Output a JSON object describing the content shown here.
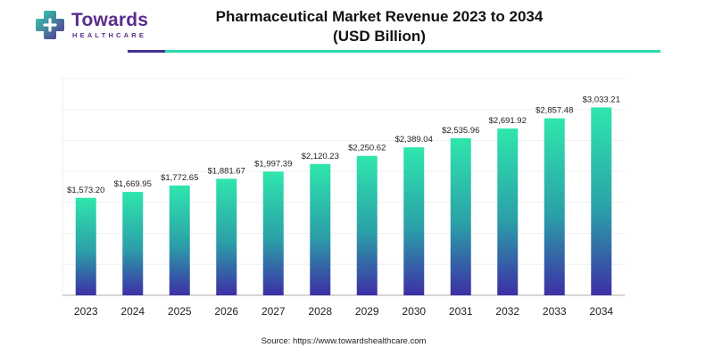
{
  "brand": {
    "name": "Towards",
    "tagline": "HEALTHCARE",
    "mark_icon": "medical-cross-icon",
    "colors": {
      "purple": "#5b2d8e",
      "teal": "#2fd8b0",
      "indigo": "#3d3294"
    }
  },
  "chart_data": {
    "type": "bar",
    "title": "Pharmaceutical Market Revenue 2023 to 2034",
    "subtitle": "(USD Billion)",
    "categories": [
      "2023",
      "2024",
      "2025",
      "2026",
      "2027",
      "2028",
      "2029",
      "2030",
      "2031",
      "2032",
      "2033",
      "2034"
    ],
    "values": [
      1573.2,
      1669.95,
      1772.65,
      1881.67,
      1997.39,
      2120.23,
      2250.62,
      2389.04,
      2535.96,
      2691.92,
      2857.48,
      3033.21
    ],
    "data_labels": [
      "$1,573.20",
      "$1,669.95",
      "$1,772.65",
      "$1,881.67",
      "$1,997.39",
      "$2,120.23",
      "$2,250.62",
      "$2,389.04",
      "$2,535.96",
      "$2,691.92",
      "$2,857.48",
      "$3,033.21"
    ],
    "xlabel": "",
    "ylabel": "",
    "ylim": [
      0,
      3500
    ],
    "grid": true,
    "legend": "none",
    "bar_gradient": {
      "top": "#2fe6ad",
      "middle": "#2b9fa8",
      "bottom": "#3d2fa6"
    }
  },
  "footer": {
    "source": "Source: https://www.towardshealthcare.com"
  }
}
